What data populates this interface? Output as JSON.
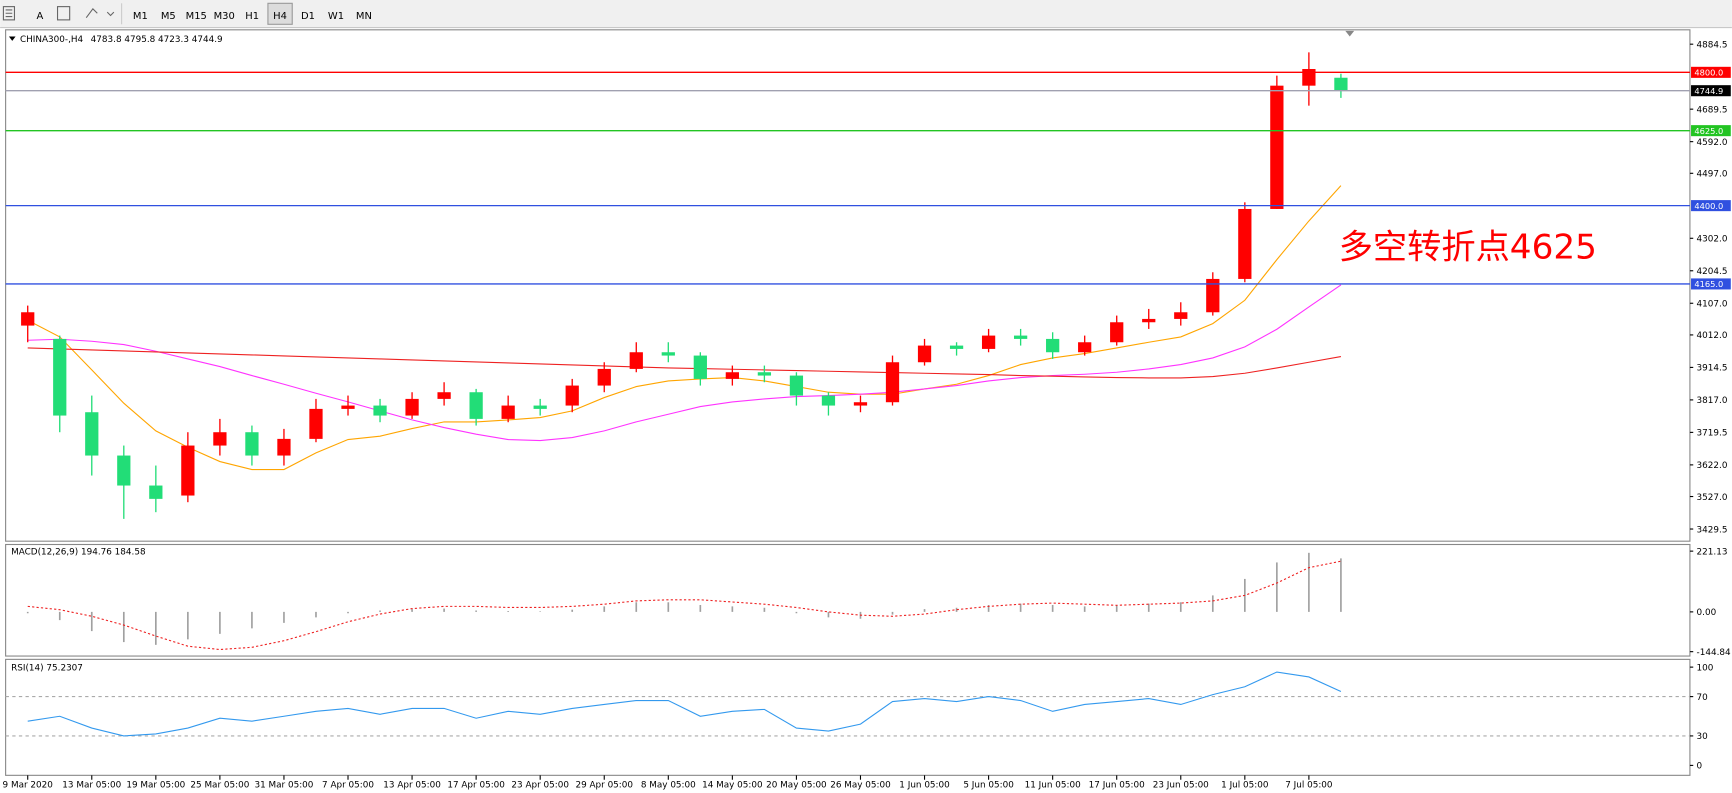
{
  "toolbar": {
    "font_button": "A",
    "buttons": [
      "M1",
      "M5",
      "M15",
      "M30",
      "H1",
      "H4",
      "D1",
      "W1",
      "MN"
    ],
    "active": "H4"
  },
  "chart_data": [
    {
      "type": "candlestick",
      "title": "CHINA300-,H4",
      "info": "4783.8 4795.8 4723.3 4744.9",
      "up_color": "#ff0000",
      "down_color": "#22dd77",
      "categories": [
        "9 Mar 2020",
        null,
        "13 Mar 05:00",
        null,
        "19 Mar 05:00",
        null,
        "25 Mar 05:00",
        null,
        "31 Mar 05:00",
        null,
        "7 Apr 05:00",
        null,
        "13 Apr 05:00",
        null,
        "17 Apr 05:00",
        null,
        "23 Apr 05:00",
        null,
        "29 Apr 05:00",
        null,
        "8 May 05:00",
        null,
        "14 May 05:00",
        null,
        "20 May 05:00",
        null,
        "26 May 05:00",
        null,
        "1 Jun 05:00",
        null,
        "5 Jun 05:00",
        null,
        "11 Jun 05:00",
        null,
        "17 Jun 05:00",
        null,
        "23 Jun 05:00",
        null,
        "1 Jul 05:00",
        null,
        "7 Jul 05:00",
        null
      ],
      "open": [
        4040,
        4000,
        3780,
        3650,
        3560,
        3530,
        3680,
        3720,
        3650,
        3700,
        3790,
        3800,
        3770,
        3820,
        3840,
        3760,
        3800,
        3800,
        3860,
        3910,
        3960,
        3950,
        3880,
        3900,
        3890,
        3830,
        3800,
        3810,
        3930,
        3980,
        3970,
        4010,
        4000,
        3960,
        3990,
        4050,
        4060,
        4080,
        4180,
        4390,
        4760,
        4783.8
      ],
      "high": [
        4100,
        4010,
        3830,
        3680,
        3620,
        3720,
        3760,
        3740,
        3730,
        3820,
        3830,
        3820,
        3840,
        3870,
        3850,
        3830,
        3820,
        3880,
        3930,
        3990,
        3990,
        3960,
        3920,
        3920,
        3900,
        3840,
        3830,
        3950,
        4000,
        3990,
        4030,
        4030,
        4020,
        4010,
        4070,
        4090,
        4110,
        4200,
        4410,
        4790,
        4860,
        4795.8
      ],
      "low": [
        3990,
        3720,
        3590,
        3460,
        3480,
        3510,
        3650,
        3620,
        3620,
        3690,
        3770,
        3750,
        3760,
        3800,
        3740,
        3750,
        3770,
        3780,
        3840,
        3900,
        3930,
        3860,
        3860,
        3870,
        3800,
        3770,
        3780,
        3800,
        3920,
        3950,
        3960,
        3980,
        3940,
        3950,
        3980,
        4030,
        4040,
        4070,
        4170,
        4390,
        4700,
        4723.3
      ],
      "close": [
        4080,
        3770,
        3650,
        3560,
        3520,
        3680,
        3720,
        3650,
        3700,
        3790,
        3800,
        3770,
        3820,
        3840,
        3760,
        3800,
        3790,
        3860,
        3910,
        3960,
        3950,
        3880,
        3900,
        3890,
        3830,
        3800,
        3810,
        3930,
        3980,
        3970,
        4010,
        4000,
        3960,
        3990,
        4050,
        4060,
        4080,
        4180,
        4390,
        4760,
        4810,
        4744.9
      ],
      "series": [
        {
          "color": "#ffa500",
          "values": [
            4056,
            4006,
            3907,
            3807,
            3724,
            3675,
            3632,
            3608,
            3608,
            3658,
            3698,
            3708,
            3731,
            3751,
            3751,
            3757,
            3764,
            3784,
            3824,
            3857,
            3874,
            3880,
            3884,
            3874,
            3857,
            3840,
            3834,
            3834,
            3850,
            3864,
            3890,
            3923,
            3943,
            3956,
            3973,
            3990,
            4006,
            4046,
            4116,
            4238,
            4354,
            4460
          ]
        },
        {
          "color": "#ff33ff",
          "values": [
            3996,
            3999,
            3993,
            3983,
            3963,
            3940,
            3917,
            3890,
            3864,
            3837,
            3811,
            3784,
            3757,
            3734,
            3714,
            3698,
            3695,
            3704,
            3724,
            3751,
            3774,
            3797,
            3811,
            3820,
            3827,
            3830,
            3834,
            3840,
            3850,
            3860,
            3874,
            3884,
            3890,
            3894,
            3900,
            3910,
            3923,
            3943,
            3976,
            4029,
            4096,
            4162
          ]
        },
        {
          "color": "#ee2222",
          "values": [
            3973,
            3970,
            3967,
            3964,
            3961,
            3958,
            3955,
            3952,
            3949,
            3946,
            3943,
            3940,
            3937,
            3934,
            3931,
            3928,
            3925,
            3922,
            3919,
            3916,
            3913,
            3911,
            3909,
            3907,
            3905,
            3903,
            3901,
            3899,
            3897,
            3895,
            3893,
            3890,
            3888,
            3886,
            3884,
            3883,
            3883,
            3887,
            3897,
            3913,
            3930,
            3947
          ]
        }
      ],
      "ylim": [
        3393.0,
        4927.6
      ],
      "yticks": [
        {
          "value": 4884.5,
          "label": "4884.5"
        },
        {
          "value": 4689.5,
          "label": "4689.5"
        },
        {
          "value": 4592.0,
          "label": "4592.0"
        },
        {
          "value": 4497.0,
          "label": "4497.0"
        },
        {
          "value": 4302.0,
          "label": "4302.0"
        },
        {
          "value": 4204.5,
          "label": "4204.5"
        },
        {
          "value": 4107.0,
          "label": "4107.0"
        },
        {
          "value": 4012.0,
          "label": "4012.0"
        },
        {
          "value": 3914.5,
          "label": "3914.5"
        },
        {
          "value": 3817.0,
          "label": "3817.0"
        },
        {
          "value": 3719.5,
          "label": "3719.5"
        },
        {
          "value": 3622.0,
          "label": "3622.0"
        },
        {
          "value": 3527.0,
          "label": "3527.0"
        },
        {
          "value": 3429.5,
          "label": "3429.5"
        }
      ],
      "levels": [
        {
          "value": 4800,
          "label": "4800.0",
          "color": "#ff0000"
        },
        {
          "value": 4744.9,
          "color": "#a0a0b0"
        },
        {
          "value": 4625,
          "label": "4625.0",
          "color": "#22c422"
        },
        {
          "value": 4400,
          "label": "4400.0",
          "color": "#3050e0"
        },
        {
          "value": 4165,
          "label": "4165.0",
          "color": "#3050e0"
        }
      ],
      "annotation": "多空转折点4625"
    },
    {
      "type": "macd",
      "title": "MACD(12,26,9) 194.76 184.58",
      "histogram": [
        -5,
        -30,
        -70,
        -110,
        -120,
        -100,
        -80,
        -60,
        -40,
        -20,
        -5,
        5,
        10,
        12,
        5,
        3,
        2,
        8,
        20,
        35,
        35,
        25,
        20,
        15,
        -5,
        -20,
        -25,
        -10,
        10,
        15,
        25,
        30,
        25,
        20,
        25,
        30,
        35,
        60,
        120,
        180,
        215,
        194.76
      ],
      "signal": [
        20,
        8,
        -16,
        -48,
        -88,
        -125,
        -137,
        -129,
        -105,
        -72,
        -36,
        -8,
        12,
        20,
        20,
        16,
        16,
        20,
        28,
        40,
        44,
        44,
        36,
        28,
        16,
        0,
        -12,
        -16,
        -8,
        8,
        20,
        28,
        32,
        28,
        24,
        28,
        32,
        40,
        60,
        105,
        161,
        184.58
      ],
      "hist_color": "#a0a0a0",
      "signal_color": "#ee2222",
      "ylim": [
        -160.8,
        245.3
      ],
      "yticks": [
        221.13,
        {
          "value": 0,
          "label": "0.00"
        },
        -144.84
      ]
    },
    {
      "type": "rsi",
      "title": "RSI(14) 75.2307",
      "values": [
        45,
        50,
        38,
        30,
        32,
        38,
        48,
        45,
        50,
        55,
        58,
        52,
        58,
        58,
        48,
        55,
        52,
        58,
        62,
        66,
        66,
        50,
        55,
        57,
        38,
        35,
        42,
        65,
        68,
        65,
        70,
        66,
        55,
        62,
        65,
        68,
        62,
        72,
        80,
        95,
        90,
        75.23
      ],
      "color": "#3399ee",
      "ylim": [
        -10.1,
        107.9
      ],
      "yticks": [
        100,
        70,
        30,
        0
      ],
      "dashed": [
        70,
        30
      ]
    }
  ]
}
